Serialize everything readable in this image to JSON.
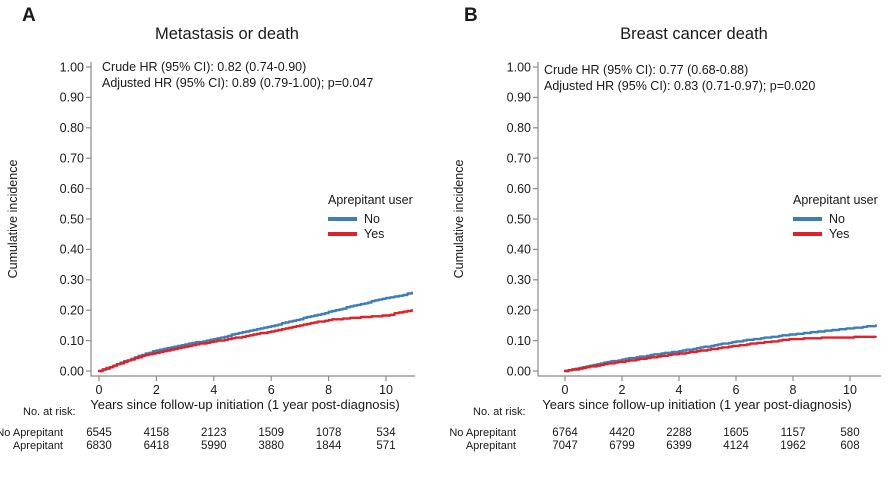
{
  "figure": {
    "panels": [
      {
        "panel_label": "A",
        "title": "Metastasis or death",
        "annotation_line1": "Crude HR (95% CI): 0.82 (0.74-0.90)",
        "annotation_line2": "Adjusted HR (95% CI): 0.89 (0.79-1.00); p=0.047",
        "ylabel": "Cumulative incidence",
        "xlabel": "Years since follow-up initiation (1 year post-diagnosis)",
        "legend": {
          "title": "Aprepitant user",
          "entries": [
            {
              "label": "No",
              "color": "#3e7db8"
            },
            {
              "label": "Yes",
              "color": "#e02127"
            }
          ]
        },
        "risk_table": {
          "header": "No. at risk:",
          "rows": [
            {
              "label": "No Aprepitant",
              "counts": [
                "6545",
                "4158",
                "2123",
                "1509",
                "1078",
                "534"
              ]
            },
            {
              "label": "Aprepitant",
              "counts": [
                "6830",
                "6418",
                "5990",
                "3880",
                "1844",
                "571"
              ]
            }
          ]
        }
      },
      {
        "panel_label": "B",
        "title": "Breast cancer death",
        "annotation_line1": "Crude HR (95% CI): 0.77 (0.68-0.88)",
        "annotation_line2": "Adjusted HR (95% CI): 0.83 (0.71-0.97); p=0.020",
        "ylabel": "Cumulative incidence",
        "xlabel": "Years since follow-up initiation (1 year post-diagnosis)",
        "legend": {
          "title": "Aprepitant user",
          "entries": [
            {
              "label": "No",
              "color": "#3e7db8"
            },
            {
              "label": "Yes",
              "color": "#e02127"
            }
          ]
        },
        "risk_table": {
          "header": "No. at risk:",
          "rows": [
            {
              "label": "No Aprepitant",
              "counts": [
                "6764",
                "4420",
                "2288",
                "1605",
                "1157",
                "580"
              ]
            },
            {
              "label": "Aprepitant",
              "counts": [
                "7047",
                "6799",
                "6399",
                "4124",
                "1962",
                "608"
              ]
            }
          ]
        }
      }
    ]
  },
  "chart_data": [
    {
      "type": "line",
      "title": "Metastasis or death",
      "xlabel": "Years since follow-up initiation (1 year post-diagnosis)",
      "ylabel": "Cumulative incidence",
      "xlim": [
        0,
        11
      ],
      "ylim": [
        0,
        1
      ],
      "grid": false,
      "legend_position": "right-middle",
      "annotations": [
        "Crude HR (95% CI): 0.82 (0.74-0.90)",
        "Adjusted HR (95% CI): 0.89 (0.79-1.00); p=0.047"
      ],
      "xticks": [
        {
          "v": 0,
          "label": "0"
        },
        {
          "v": 2,
          "label": "2"
        },
        {
          "v": 4,
          "label": "4"
        },
        {
          "v": 6,
          "label": "6"
        },
        {
          "v": 8,
          "label": "8"
        },
        {
          "v": 10,
          "label": "10"
        }
      ],
      "yticks": [
        {
          "v": 0,
          "label": "0.00"
        },
        {
          "v": 0.1,
          "label": "0.10"
        },
        {
          "v": 0.2,
          "label": "0.20"
        },
        {
          "v": 0.3,
          "label": "0.30"
        },
        {
          "v": 0.4,
          "label": "0.40"
        },
        {
          "v": 0.5,
          "label": "0.50"
        },
        {
          "v": 0.6,
          "label": "0.60"
        },
        {
          "v": 0.7,
          "label": "0.70"
        },
        {
          "v": 0.8,
          "label": "0.80"
        },
        {
          "v": 0.9,
          "label": "0.90"
        },
        {
          "v": 1.0,
          "label": "1.00"
        }
      ],
      "series": [
        {
          "name": "No",
          "color": "#3e7db8",
          "x": [
            0,
            0.5,
            1,
            1.5,
            2,
            2.5,
            3,
            3.5,
            4,
            4.5,
            5,
            5.5,
            6,
            6.5,
            7,
            7.5,
            8,
            8.5,
            9,
            9.5,
            10,
            10.3,
            10.6,
            10.9
          ],
          "y": [
            0,
            0.018,
            0.036,
            0.053,
            0.068,
            0.078,
            0.087,
            0.096,
            0.105,
            0.116,
            0.127,
            0.138,
            0.148,
            0.159,
            0.171,
            0.182,
            0.194,
            0.206,
            0.217,
            0.229,
            0.24,
            0.246,
            0.251,
            0.258
          ]
        },
        {
          "name": "Yes",
          "color": "#e02127",
          "x": [
            0,
            0.5,
            1,
            1.5,
            2,
            2.5,
            3,
            3.5,
            4,
            4.5,
            5,
            5.5,
            6,
            6.5,
            7,
            7.5,
            8,
            8.5,
            9,
            9.5,
            10,
            10.3,
            10.6,
            10.9
          ],
          "y": [
            0,
            0.017,
            0.034,
            0.049,
            0.061,
            0.071,
            0.08,
            0.089,
            0.097,
            0.105,
            0.113,
            0.122,
            0.13,
            0.14,
            0.149,
            0.159,
            0.168,
            0.172,
            0.176,
            0.179,
            0.183,
            0.189,
            0.194,
            0.199
          ]
        }
      ],
      "risk_table": {
        "header": "No. at risk:",
        "times": [
          0,
          2,
          4,
          6,
          8,
          10
        ],
        "rows": [
          {
            "label": "No Aprepitant",
            "counts": [
              6545,
              4158,
              2123,
              1509,
              1078,
              534
            ]
          },
          {
            "label": "Aprepitant",
            "counts": [
              6830,
              6418,
              5990,
              3880,
              1844,
              571
            ]
          }
        ]
      }
    },
    {
      "type": "line",
      "title": "Breast cancer death",
      "xlabel": "Years since follow-up initiation (1 year post-diagnosis)",
      "ylabel": "Cumulative incidence",
      "xlim": [
        0,
        11
      ],
      "ylim": [
        0,
        1
      ],
      "grid": false,
      "legend_position": "right-middle",
      "annotations": [
        "Crude HR (95% CI): 0.77 (0.68-0.88)",
        "Adjusted HR (95% CI): 0.83 (0.71-0.97); p=0.020"
      ],
      "xticks": [
        {
          "v": 0,
          "label": "0"
        },
        {
          "v": 2,
          "label": "2"
        },
        {
          "v": 4,
          "label": "4"
        },
        {
          "v": 6,
          "label": "6"
        },
        {
          "v": 8,
          "label": "8"
        },
        {
          "v": 10,
          "label": "10"
        }
      ],
      "yticks": [
        {
          "v": 0,
          "label": "0.00"
        },
        {
          "v": 0.1,
          "label": "0.10"
        },
        {
          "v": 0.2,
          "label": "0.20"
        },
        {
          "v": 0.3,
          "label": "0.30"
        },
        {
          "v": 0.4,
          "label": "0.40"
        },
        {
          "v": 0.5,
          "label": "0.50"
        },
        {
          "v": 0.6,
          "label": "0.60"
        },
        {
          "v": 0.7,
          "label": "0.70"
        },
        {
          "v": 0.8,
          "label": "0.80"
        },
        {
          "v": 0.9,
          "label": "0.90"
        },
        {
          "v": 1.0,
          "label": "1.00"
        }
      ],
      "series": [
        {
          "name": "No",
          "color": "#3e7db8",
          "x": [
            0,
            0.5,
            1,
            1.5,
            2,
            2.5,
            3,
            3.5,
            4,
            4.5,
            5,
            5.5,
            6,
            6.5,
            7,
            7.5,
            8,
            8.5,
            9,
            9.5,
            10,
            10.3,
            10.6,
            10.9
          ],
          "y": [
            0,
            0.01,
            0.019,
            0.029,
            0.038,
            0.045,
            0.052,
            0.059,
            0.065,
            0.073,
            0.081,
            0.089,
            0.097,
            0.103,
            0.109,
            0.115,
            0.121,
            0.126,
            0.131,
            0.136,
            0.141,
            0.143,
            0.147,
            0.15
          ]
        },
        {
          "name": "Yes",
          "color": "#e02127",
          "x": [
            0,
            0.5,
            1,
            1.5,
            2,
            2.5,
            3,
            3.5,
            4,
            4.5,
            5,
            5.5,
            6,
            6.5,
            7,
            7.5,
            8,
            8.5,
            9,
            9.5,
            10,
            10.3,
            10.6,
            10.9
          ],
          "y": [
            0,
            0.008,
            0.016,
            0.024,
            0.031,
            0.038,
            0.044,
            0.051,
            0.057,
            0.063,
            0.07,
            0.077,
            0.083,
            0.089,
            0.094,
            0.1,
            0.105,
            0.107,
            0.109,
            0.11,
            0.111,
            0.112,
            0.112,
            0.112
          ]
        }
      ],
      "risk_table": {
        "header": "No. at risk:",
        "times": [
          0,
          2,
          4,
          6,
          8,
          10
        ],
        "rows": [
          {
            "label": "No Aprepitant",
            "counts": [
              6764,
              4420,
              2288,
              1605,
              1157,
              580
            ]
          },
          {
            "label": "Aprepitant",
            "counts": [
              7047,
              6799,
              6399,
              4124,
              1962,
              608
            ]
          }
        ]
      }
    }
  ]
}
